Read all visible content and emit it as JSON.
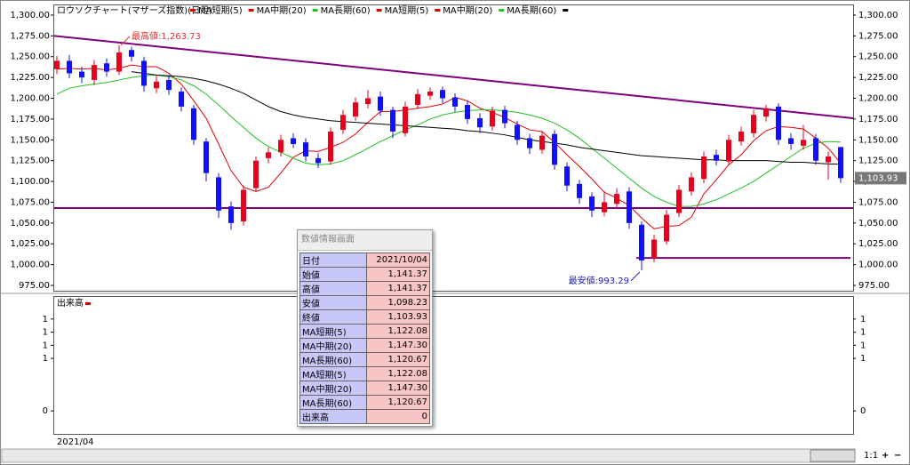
{
  "chart_data": {
    "type": "candlestick",
    "title": "ロウソクチャート(マザーズ指数)(日足)",
    "legend": [
      {
        "name": "MA短期(5)",
        "color": "#e00000"
      },
      {
        "name": "MA中期(20)",
        "color": "#e00000"
      },
      {
        "name": "MA長期(60)",
        "color": "#20c020"
      },
      {
        "name": "MA短期(5)",
        "color": "#e00000"
      },
      {
        "name": "MA中期(20)",
        "color": "#e00000"
      },
      {
        "name": "MA長期(60)",
        "color": "#20c020"
      },
      {
        "color": "#000000"
      }
    ],
    "categories": [
      "2021/04",
      null,
      null,
      null,
      null,
      null,
      null,
      null,
      null,
      null,
      null,
      null,
      null,
      null,
      null,
      null,
      null,
      null,
      null,
      null,
      null,
      null,
      null,
      null,
      null,
      null,
      null,
      null,
      null,
      null,
      null,
      null,
      null,
      null,
      null,
      null,
      null,
      null,
      null,
      null,
      null,
      null,
      null,
      null,
      null,
      null,
      null,
      null,
      null,
      null,
      null,
      null,
      null,
      null,
      null,
      null,
      null,
      null,
      null,
      null,
      null,
      null,
      null,
      null
    ],
    "open": [
      1235,
      1245,
      1232,
      1222,
      1242,
      1232,
      1258,
      1245,
      1212,
      1222,
      1208,
      1188,
      1148,
      1105,
      1070,
      1052,
      1092,
      1128,
      1135,
      1152,
      1147,
      1128,
      1124,
      1162,
      1178,
      1193,
      1202,
      1186,
      1158,
      1192,
      1203,
      1210,
      1201,
      1192,
      1176,
      1166,
      1186,
      1168,
      1152,
      1138,
      1157,
      1118,
      1097,
      1082,
      1063,
      1073,
      1088,
      1048,
      1008,
      1028,
      1062,
      1088,
      1103,
      1132,
      1124,
      1148,
      1158,
      1178,
      1190,
      1152,
      1143,
      1152,
      1123,
      1141.37
    ],
    "high": [
      1251,
      1252,
      1238,
      1246,
      1248,
      1263.73,
      1262,
      1250,
      1228,
      1228,
      1213,
      1192,
      1152,
      1110,
      1076,
      1095,
      1130,
      1141,
      1156,
      1158,
      1152,
      1134,
      1165,
      1186,
      1201,
      1210,
      1208,
      1190,
      1196,
      1211,
      1213,
      1214,
      1206,
      1197,
      1182,
      1190,
      1191,
      1173,
      1157,
      1160,
      1162,
      1123,
      1102,
      1087,
      1088,
      1092,
      1093,
      1052,
      1036,
      1066,
      1096,
      1111,
      1136,
      1138,
      1156,
      1166,
      1186,
      1192,
      1194,
      1158,
      1168,
      1157,
      1136,
      1141.37
    ],
    "low": [
      1229,
      1224,
      1218,
      1216,
      1226,
      1228,
      1244,
      1208,
      1206,
      1204,
      1184,
      1144,
      1100,
      1056,
      1042,
      1047,
      1088,
      1122,
      1130,
      1140,
      1124,
      1116,
      1120,
      1157,
      1173,
      1188,
      1179,
      1152,
      1154,
      1187,
      1198,
      1194,
      1184,
      1169,
      1158,
      1161,
      1164,
      1144,
      1133,
      1133,
      1114,
      1088,
      1073,
      1057,
      1058,
      1068,
      1043,
      993.29,
      1003,
      1024,
      1057,
      1083,
      1098,
      1119,
      1119,
      1143,
      1153,
      1172,
      1144,
      1138,
      1138,
      1120,
      1102,
      1098.23
    ],
    "close": [
      1245,
      1230,
      1225,
      1240,
      1232,
      1255,
      1250,
      1215,
      1220,
      1210,
      1190,
      1150,
      1110,
      1065,
      1050,
      1090,
      1125,
      1135,
      1150,
      1145,
      1130,
      1122,
      1160,
      1180,
      1195,
      1200,
      1185,
      1160,
      1190,
      1205,
      1208,
      1200,
      1190,
      1175,
      1165,
      1185,
      1170,
      1150,
      1140,
      1155,
      1120,
      1095,
      1080,
      1065,
      1075,
      1085,
      1050,
      1005,
      1030,
      1060,
      1090,
      1105,
      1130,
      1125,
      1150,
      1160,
      1180,
      1188,
      1150,
      1145,
      1150,
      1125,
      1130,
      1103.93
    ],
    "up_color": "#e8001c",
    "down_color": "#1010ff",
    "series": [
      {
        "color": "#e00000",
        "values": [
          1235,
          1236,
          1235,
          1236,
          1234,
          1236,
          1240,
          1238,
          1238,
          1230,
          1217,
          1197,
          1176,
          1145,
          1113,
          1093,
          1088,
          1093,
          1110,
          1129,
          1137,
          1136,
          1141,
          1147,
          1157,
          1171,
          1184,
          1184,
          1186,
          1188,
          1190,
          1193,
          1201,
          1197,
          1188,
          1183,
          1177,
          1169,
          1162,
          1160,
          1147,
          1132,
          1118,
          1103,
          1087,
          1080,
          1071,
          1056,
          1043,
          1046,
          1047,
          1057,
          1085,
          1102,
          1120,
          1132,
          1149,
          1161,
          1166,
          1165,
          1163,
          1152,
          1140,
          1122.08
        ]
      },
      {
        "color": "#20c020",
        "values": [
          1205,
          1212,
          1215,
          1217,
          1219,
          1222,
          1225,
          1227,
          1228,
          1226,
          1222,
          1215,
          1205,
          1192,
          1178,
          1165,
          1152,
          1142,
          1135,
          1128,
          1122,
          1120,
          1121,
          1125,
          1132,
          1140,
          1148,
          1155,
          1162,
          1168,
          1175,
          1180,
          1183,
          1185,
          1186,
          1186,
          1185,
          1183,
          1180,
          1176,
          1170,
          1162,
          1152,
          1140,
          1128,
          1116,
          1104,
          1092,
          1082,
          1075,
          1070,
          1070,
          1073,
          1078,
          1085,
          1092,
          1100,
          1110,
          1120,
          1130,
          1140,
          1146,
          1148,
          1147.3
        ]
      },
      {
        "color": "#000000",
        "values": [
          null,
          null,
          null,
          null,
          null,
          null,
          1232,
          1230,
          1228,
          1227,
          1226,
          1224,
          1221,
          1217,
          1212,
          1206,
          1198,
          1190,
          1184,
          1180,
          1177,
          1175,
          1173,
          1172,
          1171,
          1170,
          1169,
          1168,
          1167,
          1166,
          1165,
          1164,
          1163,
          1161,
          1160,
          1158,
          1156,
          1153,
          1150,
          1148,
          1146,
          1144,
          1141,
          1139,
          1137,
          1135,
          1133,
          1131,
          1130,
          1129,
          1128,
          1127,
          1126,
          1126,
          1125,
          1125,
          1125,
          1125,
          1124,
          1123,
          1123,
          1122,
          1121,
          1120.67
        ]
      }
    ],
    "trendline": {
      "values": [
        1275,
        1176
      ],
      "color": "#800080"
    },
    "hlines": [
      1068,
      1008
    ],
    "high_label": "最高値:1,263.73",
    "low_label": "最安値:993.29",
    "last_label": "1,103.93",
    "ylim": [
      968.6,
      1312.8
    ],
    "yticks": [
      {
        "value": 1300,
        "label": "1,300.00"
      },
      {
        "value": 1275,
        "label": "1,275.00"
      },
      {
        "value": 1250,
        "label": "1,250.00"
      },
      {
        "value": 1225,
        "label": "1,225.00"
      },
      {
        "value": 1200,
        "label": "1,200.00"
      },
      {
        "value": 1175,
        "label": "1,175.00"
      },
      {
        "value": 1150,
        "label": "1,150.00"
      },
      {
        "value": 1125,
        "label": "1,125.00"
      },
      {
        "value": 1100,
        "label": "1,100.00"
      },
      {
        "value": 1075,
        "label": "1,075.00"
      },
      {
        "value": 1050,
        "label": "1,050.00"
      },
      {
        "value": 1025,
        "label": "1,025.00"
      },
      {
        "value": 1000,
        "label": "1,000.00"
      },
      {
        "value": 975,
        "label": "975.00"
      }
    ],
    "volume": {
      "name": "出来高",
      "color": "#e00000",
      "values": [
        0,
        0,
        0,
        0,
        0,
        0,
        0,
        0,
        0,
        0,
        0,
        0,
        0,
        0,
        0,
        0,
        0,
        0,
        0,
        0,
        0,
        0,
        0,
        0,
        0,
        0,
        0,
        0,
        0,
        0,
        0,
        0,
        0,
        0,
        0,
        0,
        0,
        0,
        0,
        0,
        0,
        0,
        0,
        0,
        0,
        0,
        0,
        0,
        0,
        0,
        0,
        0,
        0,
        0,
        0,
        0,
        0,
        0,
        0,
        0,
        0,
        0,
        0,
        0
      ],
      "ylim": [
        -0.35,
        1.75
      ],
      "yticks": [
        {
          "value": 1.4,
          "label": "1"
        },
        {
          "value": 1.2,
          "label": "1"
        },
        {
          "value": 1.0,
          "label": "1"
        },
        {
          "value": 0.8,
          "label": "1"
        },
        0
      ]
    }
  },
  "info_panel": {
    "title": "数値情報画面",
    "rows": [
      [
        "日付",
        "2021/10/04"
      ],
      [
        "始値",
        "1,141.37"
      ],
      [
        "高値",
        "1,141.37"
      ],
      [
        "安値",
        "1,098.23"
      ],
      [
        "終値",
        "1,103.93"
      ],
      [
        "MA短期(5)",
        "1,122.08"
      ],
      [
        "MA中期(20)",
        "1,147.30"
      ],
      [
        "MA長期(60)",
        "1,120.67"
      ],
      [
        "MA短期(5)",
        "1,122.08"
      ],
      [
        "MA中期(20)",
        "1,147.30"
      ],
      [
        "MA長期(60)",
        "1,120.67"
      ],
      [
        "出来高",
        "0"
      ]
    ]
  },
  "ui": {
    "zoom": "1:1"
  }
}
